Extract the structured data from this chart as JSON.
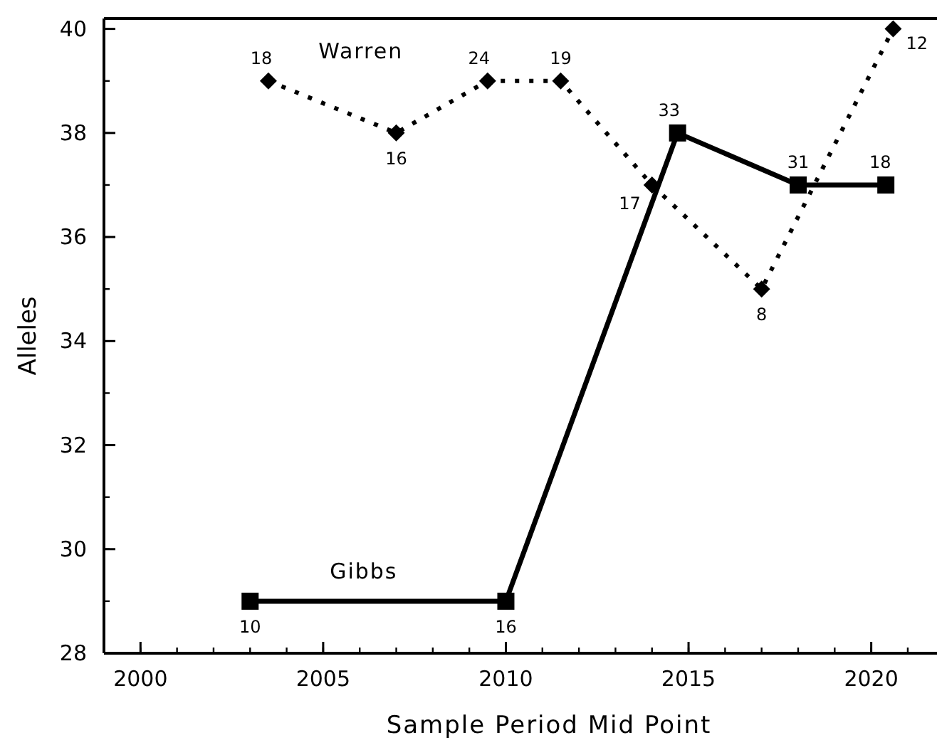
{
  "chart_data": {
    "type": "line",
    "xlabel": "Sample Period Mid Point",
    "ylabel": "Alleles",
    "xlim": [
      1999,
      2021.8
    ],
    "xticks": [
      2000,
      2005,
      2010,
      2015,
      2020
    ],
    "ylim": [
      28,
      40.2
    ],
    "yticks": [
      28,
      30,
      32,
      34,
      36,
      38,
      40
    ],
    "series": [
      {
        "name": "Gibbs",
        "color": "#000000",
        "marker": "square",
        "line_style": "solid",
        "x": [
          2003,
          2010,
          2014.7,
          2018,
          2020.4
        ],
        "values": [
          29,
          29,
          38,
          37,
          37
        ]
      },
      {
        "name": "Warren",
        "color": "#000000",
        "marker": "diamond",
        "line_style": "dotted",
        "x": [
          2003.5,
          2007,
          2009.5,
          2011.5,
          2014,
          2017,
          2020.6
        ],
        "values": [
          39,
          38,
          39,
          39,
          37,
          35,
          40
        ]
      }
    ],
    "annotations": [
      {
        "text": "10",
        "x": 2003,
        "y": 29
      },
      {
        "text": "16",
        "x": 2010,
        "y": 29
      },
      {
        "text": "33",
        "x": 2014.7,
        "y": 38
      },
      {
        "text": "31",
        "x": 2018,
        "y": 37
      },
      {
        "text": "18",
        "x": 2020.4,
        "y": 37
      },
      {
        "text": "18",
        "x": 2003.5,
        "y": 39
      },
      {
        "text": "16",
        "x": 2007,
        "y": 38
      },
      {
        "text": "24",
        "x": 2009.5,
        "y": 39
      },
      {
        "text": "19",
        "x": 2011.5,
        "y": 39
      },
      {
        "text": "17",
        "x": 2014,
        "y": 37
      },
      {
        "text": "8",
        "x": 2017,
        "y": 35
      },
      {
        "text": "12",
        "x": 2020.6,
        "y": 40
      }
    ]
  }
}
